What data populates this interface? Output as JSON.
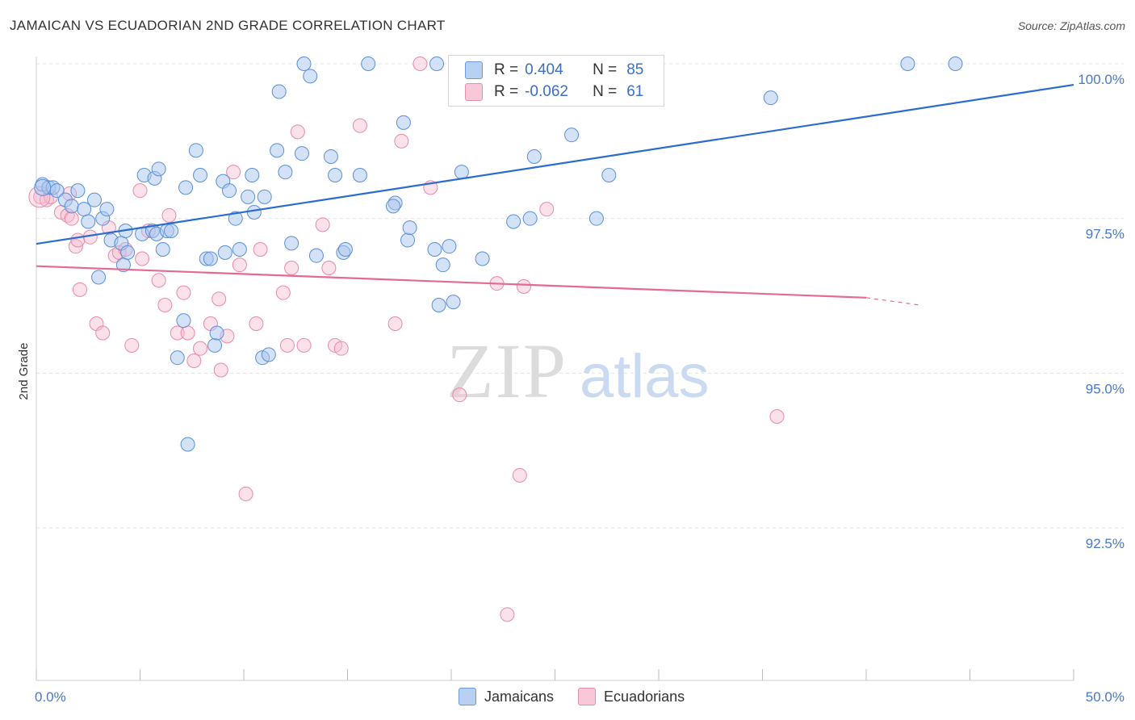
{
  "header": {
    "title": "JAMAICAN VS ECUADORIAN 2ND GRADE CORRELATION CHART",
    "source": "Source: ZipAtlas.com"
  },
  "watermark": {
    "zip": "ZIP",
    "atlas": "atlas"
  },
  "legend": {
    "rows": [
      {
        "r_label": "R =",
        "r_value": "0.404",
        "n_label": "N =",
        "n_value": "85"
      },
      {
        "r_label": "R =",
        "r_value": "-0.062",
        "n_label": "N =",
        "n_value": "61"
      }
    ]
  },
  "bottom_legend": {
    "series": [
      "Jamaicans",
      "Ecuadorians"
    ]
  },
  "colors": {
    "blue_fill": "#a9c6ef",
    "blue_stroke": "#5b8fd6",
    "blue_line": "#2a6ccf",
    "pink_fill": "#f6bdd0",
    "pink_stroke": "#e889a8",
    "pink_line": "#e46a93",
    "tick_text": "#4a78c4",
    "grid": "#e4e4e4"
  },
  "chart_data": {
    "type": "scatter",
    "title": "JAMAICAN VS ECUADORIAN 2ND GRADE CORRELATION CHART",
    "ylabel": "2nd Grade",
    "xlabel": "",
    "xlim": [
      0,
      50
    ],
    "ylim": [
      90.75,
      100.2
    ],
    "x_ticks": [
      0,
      5,
      10,
      15,
      20,
      25,
      30,
      35,
      40,
      45,
      50
    ],
    "x_tick_labels": {
      "0": "0.0%",
      "50": "50.0%"
    },
    "y_ticks": [
      92.5,
      95.0,
      97.5,
      100.0
    ],
    "y_tick_labels": [
      "92.5%",
      "95.0%",
      "97.5%",
      "100.0%"
    ],
    "grid": true,
    "series": [
      {
        "name": "Jamaicans",
        "R": 0.404,
        "N": 85,
        "trend": {
          "x": [
            0,
            50
          ],
          "y": [
            97.09,
            99.66
          ]
        },
        "points": [
          [
            0.3,
            98.05
          ],
          [
            0.6,
            98.0
          ],
          [
            0.8,
            98.0
          ],
          [
            1.0,
            97.95
          ],
          [
            1.4,
            97.8
          ],
          [
            1.7,
            97.7
          ],
          [
            2.0,
            97.95
          ],
          [
            2.3,
            97.65
          ],
          [
            2.8,
            97.8
          ],
          [
            3.2,
            97.5
          ],
          [
            3.4,
            97.65
          ],
          [
            2.5,
            97.45
          ],
          [
            3.0,
            96.55
          ],
          [
            3.6,
            97.15
          ],
          [
            4.1,
            97.1
          ],
          [
            4.2,
            96.75
          ],
          [
            4.4,
            96.95
          ],
          [
            4.3,
            97.3
          ],
          [
            5.1,
            97.25
          ],
          [
            5.2,
            98.2
          ],
          [
            5.6,
            97.3
          ],
          [
            5.7,
            98.15
          ],
          [
            5.8,
            97.25
          ],
          [
            5.9,
            98.3
          ],
          [
            6.1,
            97.0
          ],
          [
            6.3,
            97.3
          ],
          [
            6.5,
            97.3
          ],
          [
            7.2,
            98.0
          ],
          [
            7.1,
            95.85
          ],
          [
            6.8,
            95.25
          ],
          [
            7.3,
            93.85
          ],
          [
            7.7,
            98.6
          ],
          [
            7.9,
            98.2
          ],
          [
            8.2,
            96.85
          ],
          [
            8.4,
            96.85
          ],
          [
            8.6,
            95.45
          ],
          [
            8.7,
            95.65
          ],
          [
            9.0,
            98.1
          ],
          [
            9.3,
            97.95
          ],
          [
            9.6,
            97.5
          ],
          [
            9.8,
            97.0
          ],
          [
            10.2,
            97.85
          ],
          [
            10.4,
            98.2
          ],
          [
            10.5,
            97.6
          ],
          [
            10.9,
            95.25
          ],
          [
            11.2,
            95.3
          ],
          [
            11.0,
            97.85
          ],
          [
            11.6,
            98.6
          ],
          [
            11.7,
            99.55
          ],
          [
            12.0,
            98.25
          ],
          [
            12.3,
            97.1
          ],
          [
            12.8,
            98.55
          ],
          [
            12.9,
            100.0
          ],
          [
            13.2,
            99.8
          ],
          [
            14.2,
            98.5
          ],
          [
            14.4,
            98.2
          ],
          [
            14.8,
            96.95
          ],
          [
            14.9,
            97.0
          ],
          [
            15.6,
            98.2
          ],
          [
            16.0,
            100.0
          ],
          [
            17.3,
            97.75
          ],
          [
            17.7,
            99.05
          ],
          [
            17.9,
            97.15
          ],
          [
            18.0,
            97.35
          ],
          [
            19.3,
            100.0
          ],
          [
            19.2,
            97.0
          ],
          [
            19.4,
            96.1
          ],
          [
            19.6,
            96.75
          ],
          [
            19.9,
            97.05
          ],
          [
            20.1,
            96.15
          ],
          [
            20.5,
            98.25
          ],
          [
            21.5,
            96.85
          ],
          [
            23.0,
            97.45
          ],
          [
            23.8,
            97.5
          ],
          [
            24.0,
            98.5
          ],
          [
            27.0,
            97.5
          ],
          [
            27.6,
            98.2
          ],
          [
            35.4,
            99.45
          ],
          [
            42.0,
            100.0
          ],
          [
            44.3,
            100.0
          ],
          [
            26.5,
            100.0
          ],
          [
            25.8,
            98.85
          ],
          [
            17.2,
            97.7
          ],
          [
            13.5,
            96.9
          ],
          [
            9.1,
            96.95
          ]
        ]
      },
      {
        "name": "Ecuadorians",
        "R": -0.062,
        "N": 61,
        "trend": {
          "x": [
            0,
            40
          ],
          "y": [
            96.73,
            96.22
          ],
          "dashed_to": {
            "x": 42.6,
            "y": 96.1
          }
        },
        "points": [
          [
            0.2,
            97.85
          ],
          [
            0.5,
            97.8
          ],
          [
            0.7,
            97.85
          ],
          [
            1.2,
            97.6
          ],
          [
            1.5,
            97.55
          ],
          [
            1.6,
            97.9
          ],
          [
            1.7,
            97.5
          ],
          [
            1.9,
            97.05
          ],
          [
            2.0,
            97.15
          ],
          [
            2.1,
            96.35
          ],
          [
            2.6,
            97.2
          ],
          [
            2.9,
            95.8
          ],
          [
            3.2,
            95.65
          ],
          [
            3.5,
            97.35
          ],
          [
            3.8,
            96.9
          ],
          [
            4.0,
            96.95
          ],
          [
            4.3,
            97.0
          ],
          [
            4.6,
            95.45
          ],
          [
            5.0,
            97.95
          ],
          [
            5.1,
            96.85
          ],
          [
            5.4,
            97.3
          ],
          [
            5.9,
            96.5
          ],
          [
            6.2,
            96.1
          ],
          [
            6.4,
            97.55
          ],
          [
            6.8,
            95.65
          ],
          [
            7.1,
            96.3
          ],
          [
            7.3,
            95.65
          ],
          [
            7.6,
            95.2
          ],
          [
            7.9,
            95.4
          ],
          [
            8.4,
            95.8
          ],
          [
            8.8,
            96.2
          ],
          [
            8.9,
            95.05
          ],
          [
            9.2,
            95.6
          ],
          [
            9.5,
            98.25
          ],
          [
            9.8,
            96.75
          ],
          [
            10.1,
            93.05
          ],
          [
            10.6,
            95.8
          ],
          [
            10.8,
            97.0
          ],
          [
            11.9,
            96.3
          ],
          [
            12.1,
            95.45
          ],
          [
            12.3,
            96.7
          ],
          [
            12.6,
            98.9
          ],
          [
            12.9,
            95.45
          ],
          [
            13.8,
            97.4
          ],
          [
            14.1,
            96.7
          ],
          [
            14.4,
            95.45
          ],
          [
            14.7,
            95.4
          ],
          [
            15.6,
            99.0
          ],
          [
            17.3,
            95.8
          ],
          [
            17.6,
            98.75
          ],
          [
            18.5,
            100.0
          ],
          [
            19.0,
            98.0
          ],
          [
            20.4,
            94.65
          ],
          [
            22.2,
            96.45
          ],
          [
            22.7,
            91.1
          ],
          [
            23.3,
            93.35
          ],
          [
            23.5,
            96.4
          ],
          [
            24.6,
            97.65
          ],
          [
            26.9,
            99.65
          ],
          [
            35.7,
            94.3
          ],
          [
            20.8,
            100.0
          ]
        ]
      }
    ]
  }
}
